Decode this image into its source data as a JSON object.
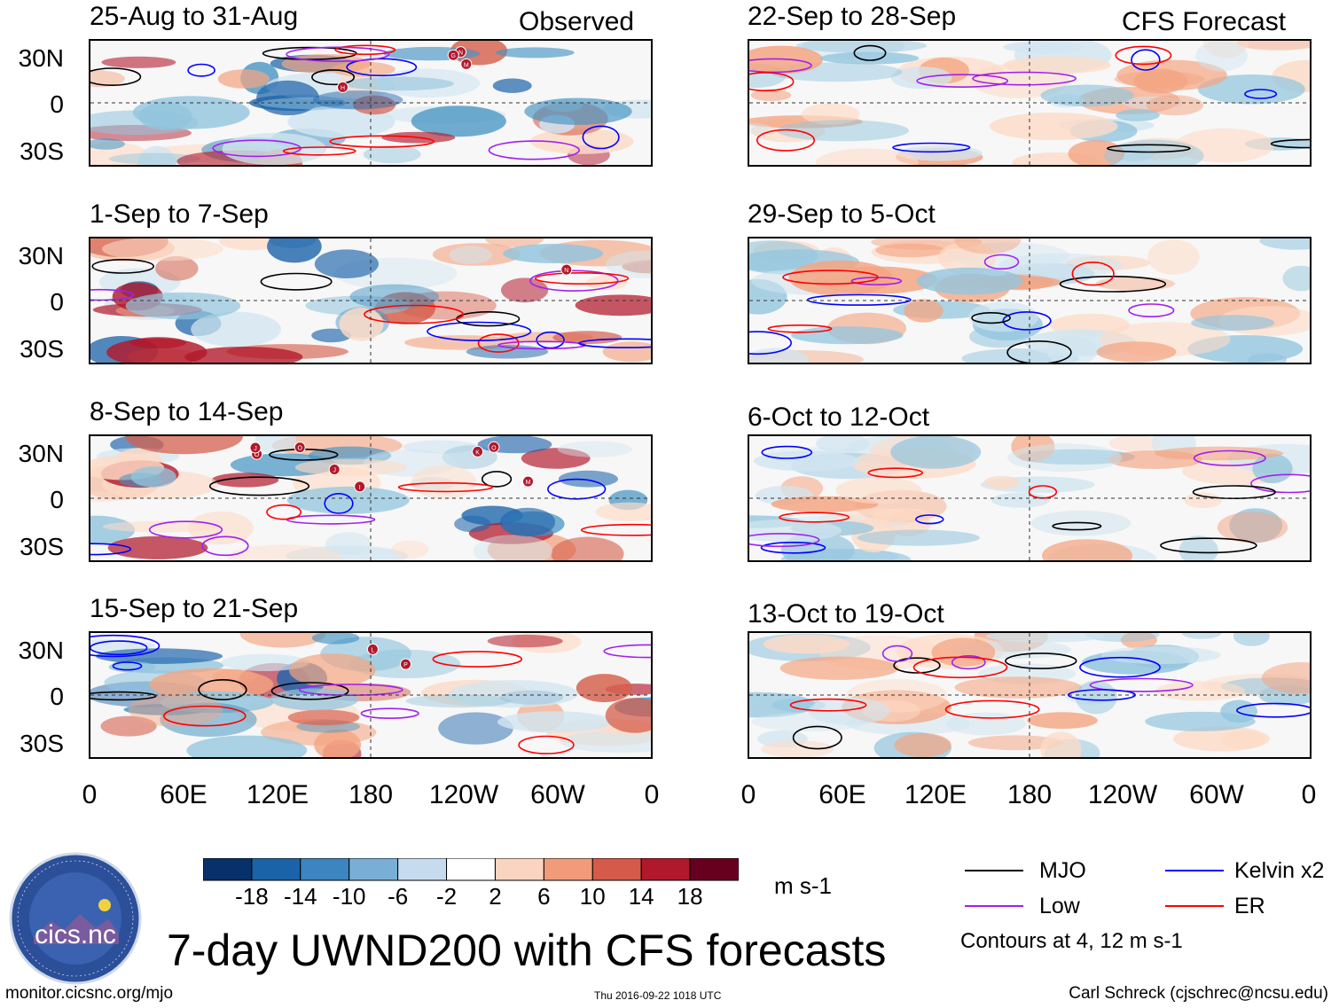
{
  "left_column_label": "Observed",
  "right_column_label": "CFS Forecast",
  "left_panels": [
    {
      "title": "25-Aug to 31-Aug"
    },
    {
      "title": "1-Sep to 7-Sep"
    },
    {
      "title": "8-Sep to 14-Sep"
    },
    {
      "title": "15-Sep to 21-Sep"
    }
  ],
  "right_panels": [
    {
      "title": "22-Sep to 28-Sep"
    },
    {
      "title": "29-Sep to 5-Oct"
    },
    {
      "title": "6-Oct to 12-Oct"
    },
    {
      "title": "13-Oct to 19-Oct"
    }
  ],
  "lat_ticks": [
    "30N",
    "0",
    "30S"
  ],
  "lon_ticks": [
    "0",
    "60E",
    "120E",
    "180",
    "120W",
    "60W",
    "0"
  ],
  "storm_markers": {
    "panel_1": [
      "N",
      "M",
      "H",
      "G"
    ],
    "panel_2": [
      "N"
    ],
    "panel_3": [
      "O",
      "M",
      "O",
      "O",
      "I",
      "J",
      "J",
      "K"
    ],
    "panel_4": [
      "P",
      "L"
    ]
  },
  "colorbar": {
    "labels": [
      "-18",
      "-14",
      "-10",
      "-6",
      "-2",
      "2",
      "6",
      "10",
      "14",
      "18"
    ],
    "colors": [
      "#08306b",
      "#1b63a8",
      "#3d85c1",
      "#79afd6",
      "#c6dcee",
      "#ffffff",
      "#fbd3c1",
      "#f09c7a",
      "#d65a49",
      "#b2182b",
      "#67001f"
    ],
    "units": "m s-1"
  },
  "title": "7-day UWND200 with CFS forecasts",
  "legend": {
    "items": [
      {
        "label": "MJO",
        "color": "#000000"
      },
      {
        "label": "Kelvin x2",
        "color": "#0000ff"
      },
      {
        "label": "Low",
        "color": "#a020f0"
      },
      {
        "label": "ER",
        "color": "#ff0000"
      }
    ],
    "note": "Contours at 4, 12 m s-1"
  },
  "logo": {
    "text": "cics.nc",
    "ring_text": "Cooperative Institute for Climate and Satellites"
  },
  "footer": {
    "url": "monitor.cicsnc.org/mjo",
    "timestamp": "Thu 2016-09-22 1018 UTC",
    "credit": "Carl Schreck (cjschrec@ncsu.edu)"
  },
  "chart_data": {
    "type": "heatmap",
    "variable": "7-day mean 200-hPa zonal wind anomaly (UWND200)",
    "units": "m s-1",
    "color_levels": [
      -18,
      -14,
      -10,
      -6,
      -2,
      2,
      6,
      10,
      14,
      18
    ],
    "xaxis": {
      "ticks": [
        "0",
        "60E",
        "120E",
        "180",
        "120W",
        "60W",
        "0"
      ],
      "range": [
        0,
        360
      ]
    },
    "yaxis": {
      "ticks": [
        "30N",
        "0",
        "30S"
      ],
      "range": [
        -40,
        40
      ]
    },
    "contour_levels": [
      4,
      12
    ],
    "contour_filters": [
      "MJO",
      "Kelvin x2",
      "Low",
      "ER"
    ],
    "panels": [
      {
        "period": "25-Aug to 31-Aug",
        "source": "Observed"
      },
      {
        "period": "1-Sep to 7-Sep",
        "source": "Observed"
      },
      {
        "period": "8-Sep to 14-Sep",
        "source": "Observed"
      },
      {
        "period": "15-Sep to 21-Sep",
        "source": "Observed"
      },
      {
        "period": "22-Sep to 28-Sep",
        "source": "CFS Forecast"
      },
      {
        "period": "29-Sep to 5-Oct",
        "source": "CFS Forecast"
      },
      {
        "period": "6-Oct to 12-Oct",
        "source": "CFS Forecast"
      },
      {
        "period": "13-Oct to 19-Oct",
        "source": "CFS Forecast"
      }
    ]
  }
}
